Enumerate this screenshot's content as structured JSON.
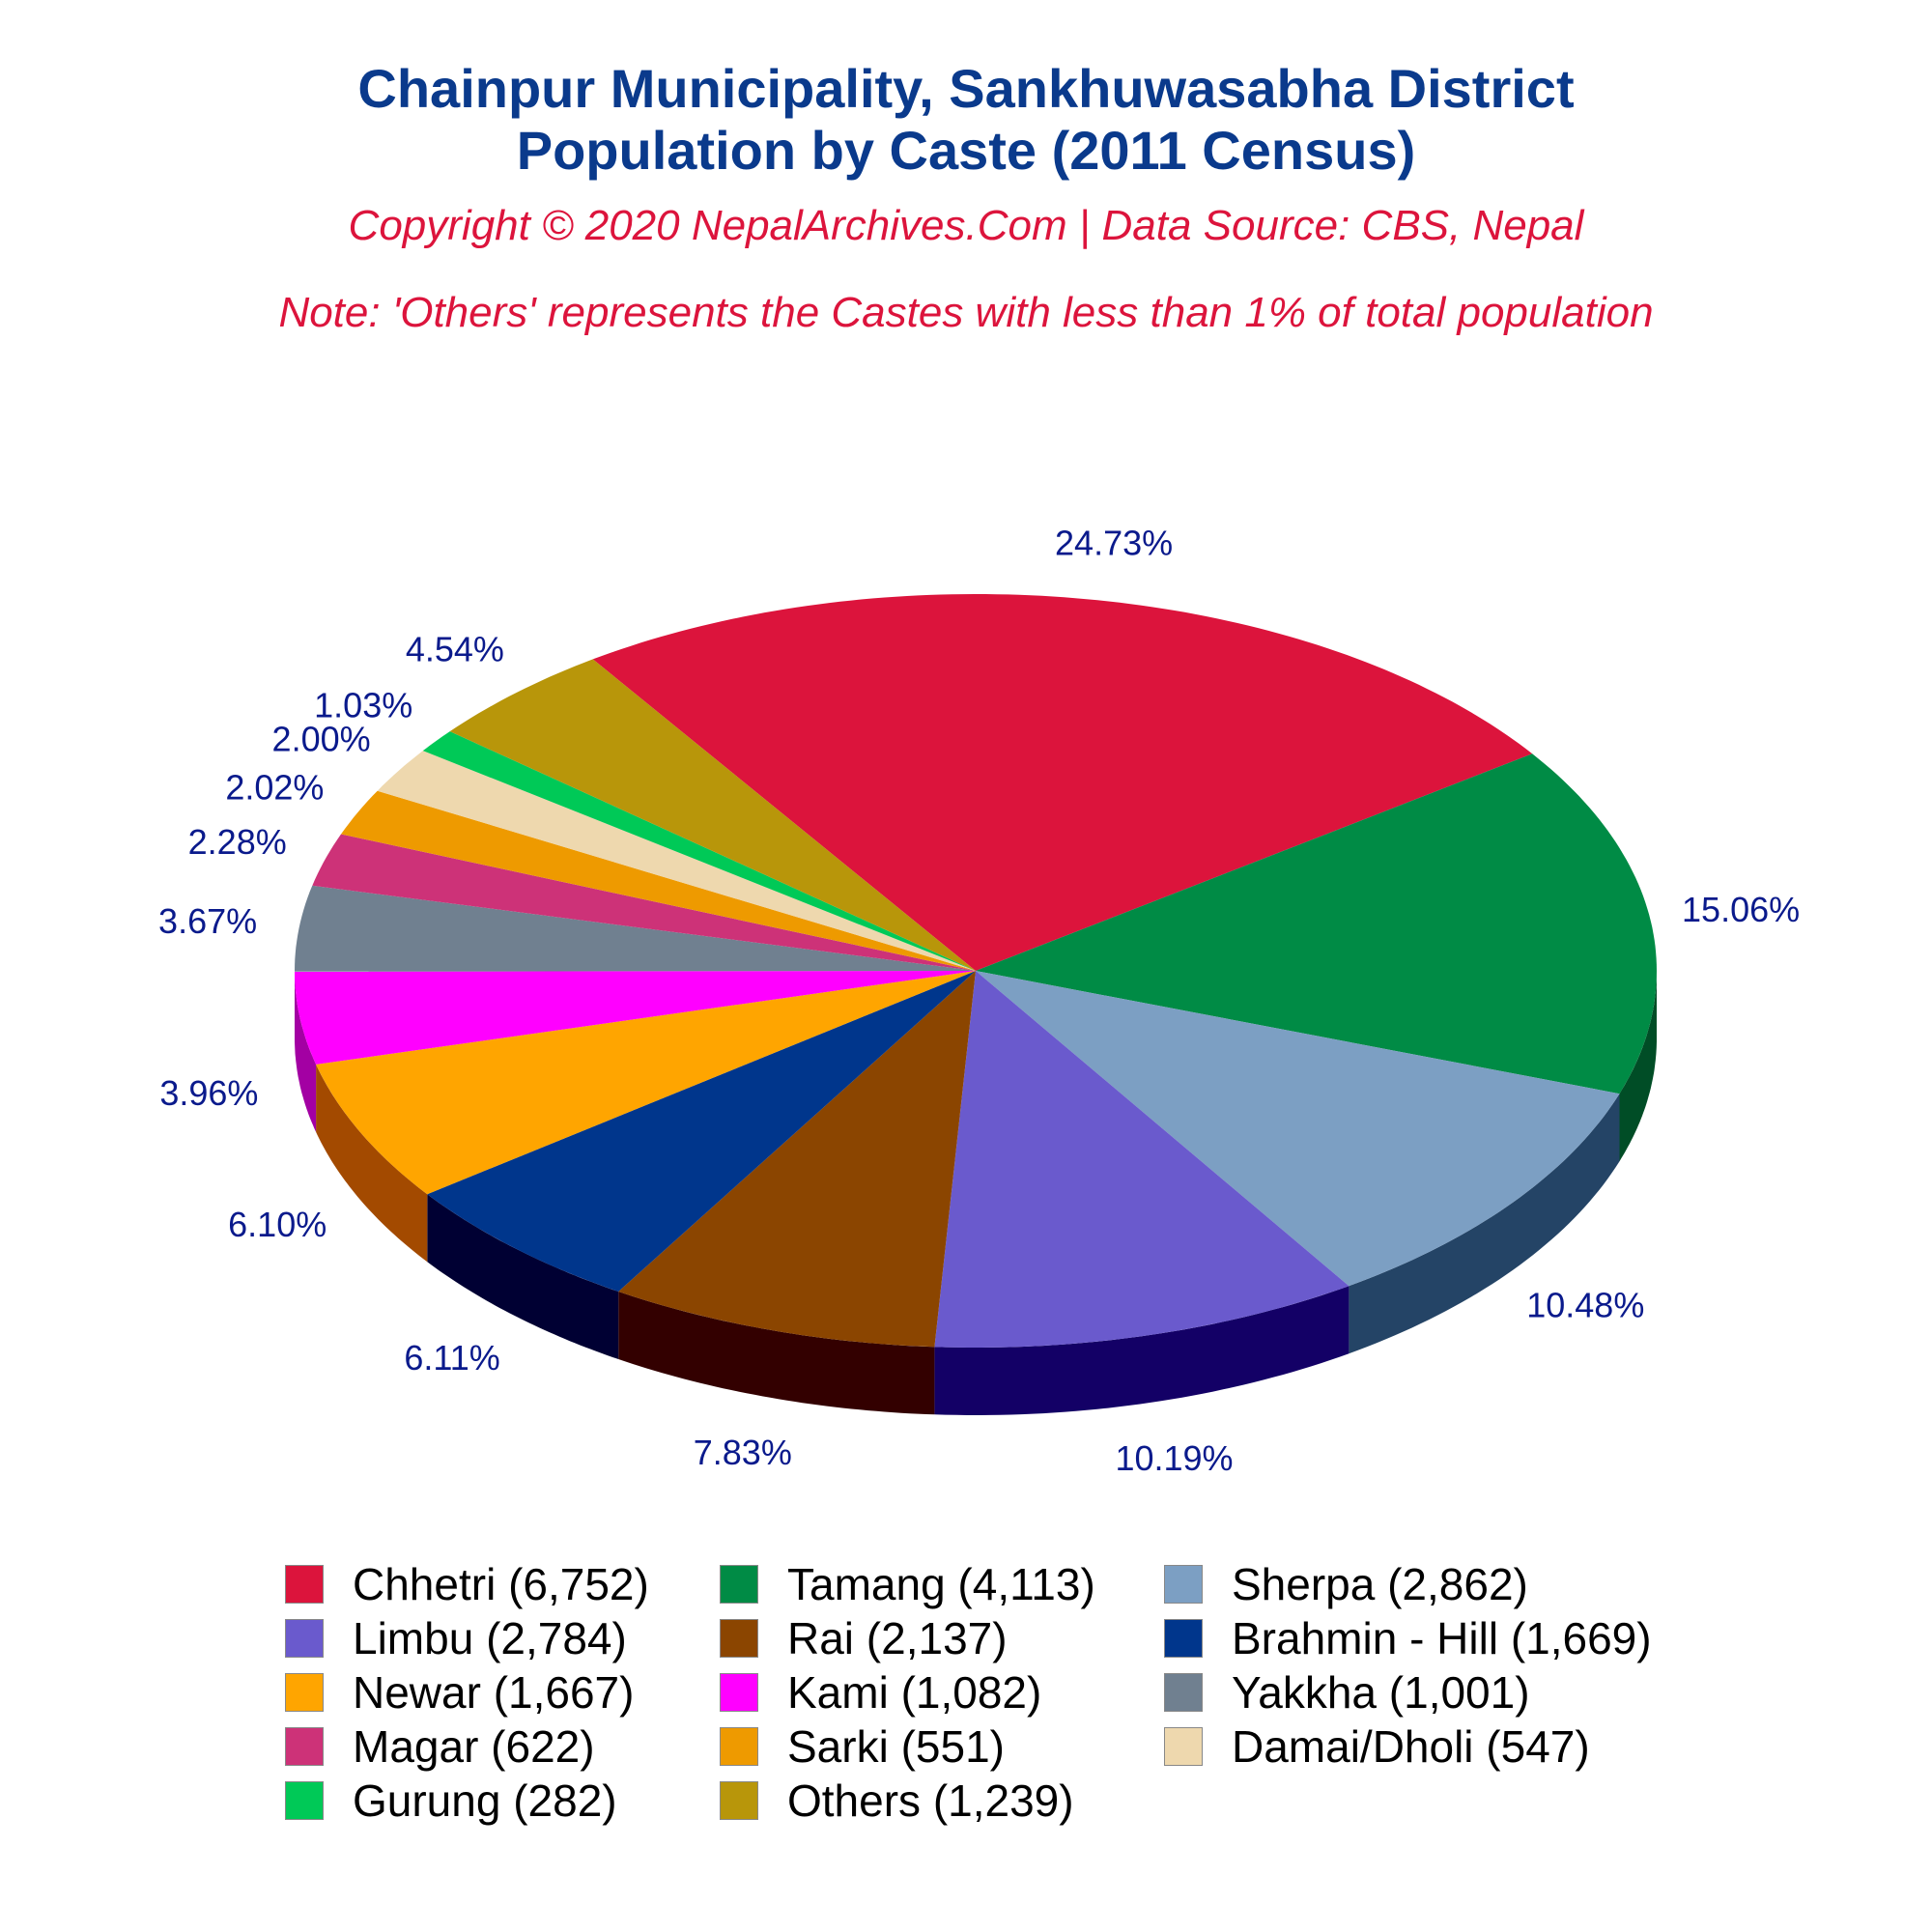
{
  "header": {
    "title_line1": "Chainpur Municipality, Sankhuwasabha District",
    "title_line2": "Population by Caste (2011 Census)",
    "copyright": "Copyright © 2020 NepalArchives.Com | Data Source: CBS, Nepal",
    "note": "Note: 'Others' represents the Castes with less than 1% of total population"
  },
  "chart_data": {
    "type": "pie",
    "title": "Chainpur Municipality, Sankhuwasabha District Population by Caste (2011 Census)",
    "legend_position": "bottom",
    "slices": [
      {
        "name": "Chhetri",
        "value": 6752,
        "pct": "24.73%",
        "legend": "Chhetri (6,752)",
        "color": "#dc143c",
        "side": "#7a0b21"
      },
      {
        "name": "Tamang",
        "value": 4113,
        "pct": "15.06%",
        "legend": "Tamang (4,113)",
        "color": "#008b45",
        "side": "#004d26"
      },
      {
        "name": "Sherpa",
        "value": 2862,
        "pct": "10.48%",
        "legend": "Sherpa (2,862)",
        "color": "#7c9fc3",
        "side": "#244466"
      },
      {
        "name": "Limbu",
        "value": 2784,
        "pct": "10.19%",
        "legend": "Limbu (2,784)",
        "color": "#6a5acd",
        "side": "#130066"
      },
      {
        "name": "Rai",
        "value": 2137,
        "pct": "7.83%",
        "legend": "Rai (2,137)",
        "color": "#8b4500",
        "side": "#330000"
      },
      {
        "name": "Brahmin - Hill",
        "value": 1669,
        "pct": "6.11%",
        "legend": "Brahmin - Hill (1,669)",
        "color": "#00368c",
        "side": "#000033"
      },
      {
        "name": "Newar",
        "value": 1667,
        "pct": "6.10%",
        "legend": "Newar (1,667)",
        "color": "#ffa500",
        "side": "#a34a00"
      },
      {
        "name": "Kami",
        "value": 1082,
        "pct": "3.96%",
        "legend": "Kami (1,082)",
        "color": "#ff00ff",
        "side": "#a300a3"
      },
      {
        "name": "Yakkha",
        "value": 1001,
        "pct": "3.67%",
        "legend": "Yakkha (1,001)",
        "color": "#708090",
        "side": "#1a2633"
      },
      {
        "name": "Magar",
        "value": 622,
        "pct": "2.28%",
        "legend": "Magar (622)",
        "color": "#cd3278",
        "side": "#661a3c"
      },
      {
        "name": "Sarki",
        "value": 551,
        "pct": "2.02%",
        "legend": "Sarki (551)",
        "color": "#ee9a00",
        "side": "#7a4f00"
      },
      {
        "name": "Damai/Dholi",
        "value": 547,
        "pct": "2.00%",
        "legend": "Damai/Dholi (547)",
        "color": "#eed8ae",
        "side": "#8a7a5a"
      },
      {
        "name": "Gurung",
        "value": 282,
        "pct": "1.03%",
        "legend": "Gurung (282)",
        "color": "#00c957",
        "side": "#006b2e"
      },
      {
        "name": "Others",
        "value": 1239,
        "pct": "4.54%",
        "legend": "Others (1,239)",
        "color": "#b8960a",
        "side": "#5c4b05"
      }
    ]
  }
}
